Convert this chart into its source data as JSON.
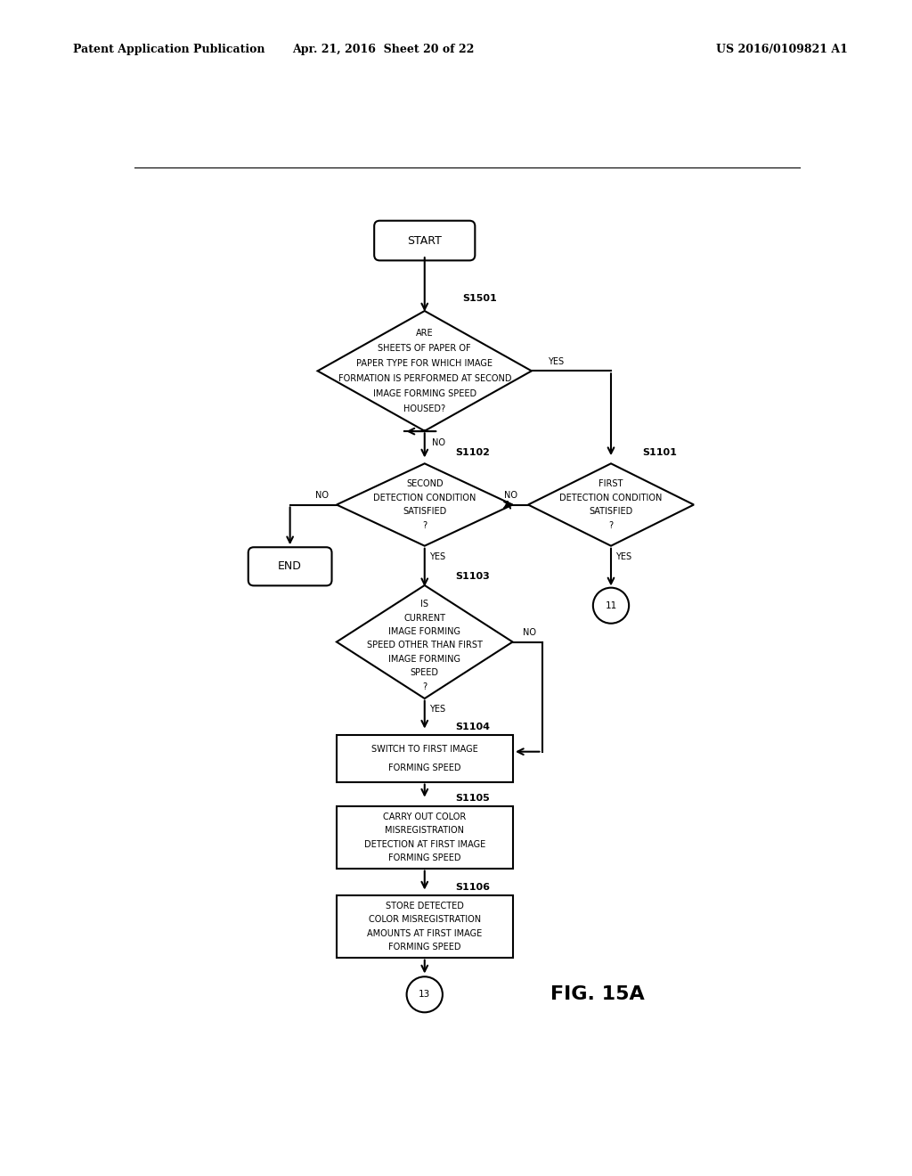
{
  "header_left": "Patent Application Publication",
  "header_mid": "Apr. 21, 2016  Sheet 20 of 22",
  "header_right": "US 2016/0109821 A1",
  "figure_label": "FIG. 15A",
  "background_color": "#ffffff",
  "line_color": "#000000",
  "text_color": "#000000"
}
